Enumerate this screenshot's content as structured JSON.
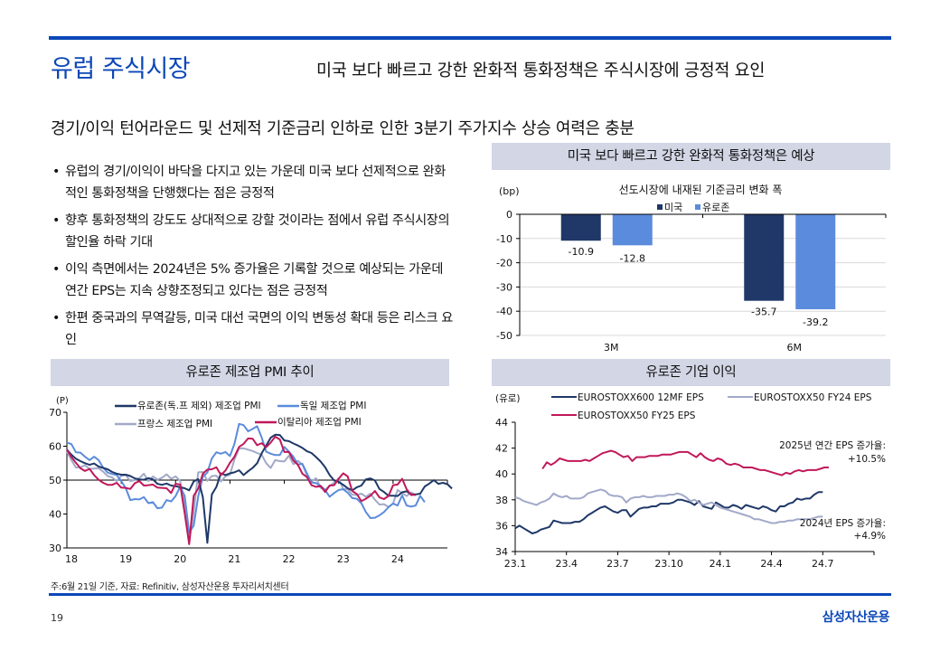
{
  "header": {
    "title": "유럽 주식시장",
    "headline": "미국 보다 빠르고 강한 완화적 통화정책은 주식시장에 긍정적 요인"
  },
  "subhead": "경기/이익 턴어라운드 및 선제적 기준금리 인하로 인한 3분기 주가지수 상승 여력은 충분",
  "bullets": [
    "유럽의 경기/이익이 바닥을 다지고 있는 가운데 미국 보다 선제적으로 완화적인 통화정책을 단행했다는 점은 긍정적",
    "향후 통화정책의 강도도 상대적으로 강할 것이라는 점에서 유럽 주식시장의 할인율 하락 기대",
    "이익 측면에서는 2024년은 5% 증가율은 기록할 것으로 예상되는 가운데 연간 EPS는 지속 상향조정되고 있다는 점은 긍정적",
    "한편 중국과의 무역갈등, 미국 대선 국면의 이익 변동성 확대 등은 리스크 요인"
  ],
  "panels": {
    "rates": "미국 보다 빠르고 강한 완화적 통화정책은 예상",
    "pmi": "유로존 제조업 PMI 추이",
    "eps": "유로존 기업 이익"
  },
  "footer": {
    "note": "주:6월 21일 기준, 자료: Refinitiv, 삼성자산운용 투자리서치센터",
    "page": "19",
    "brand": "삼성자산운용"
  },
  "colors": {
    "accent": "#0b47b8",
    "us": "#1f3868",
    "eurozone": "#5b8bdc",
    "eurozone_ex": "#1f3868",
    "germany": "#5b8bdc",
    "france": "#a2a9c8",
    "italy": "#c0185a"
  },
  "chart_data": [
    {
      "type": "bar",
      "title": "선도시장에 내재된 기준금리 변화 폭",
      "ylabel": "(bp)",
      "categories": [
        "3M",
        "6M"
      ],
      "series": [
        {
          "name": "미국",
          "values": [
            -10.9,
            -35.7
          ]
        },
        {
          "name": "유로존",
          "values": [
            -12.8,
            -39.2
          ]
        }
      ],
      "ylim": [
        -50,
        0
      ],
      "yticks": [
        0,
        -10,
        -20,
        -30,
        -40,
        -50
      ],
      "legend": "top-center",
      "grid": true
    },
    {
      "type": "line",
      "title": "유로존 제조업 PMI 추이",
      "ylabel": "(P)",
      "ylim": [
        30,
        70
      ],
      "yticks": [
        30,
        40,
        50,
        60,
        70
      ],
      "xticks": [
        "18",
        "19",
        "20",
        "21",
        "22",
        "23",
        "24"
      ],
      "x_start": 2018.0,
      "x_step": 0.0833333,
      "reference_line": 50,
      "legend": "top",
      "series": [
        {
          "name": "유로존(독.프 제외) 제조업 PMI",
          "values": [
            59.0,
            57.5,
            56.3,
            55.6,
            55.0,
            54.5,
            54.9,
            54.0,
            53.6,
            53.2,
            52.4,
            51.9,
            51.6,
            51.6,
            51.2,
            50.5,
            50.2,
            50.1,
            50.6,
            50.2,
            48.9,
            48.6,
            49.0,
            48.4,
            48.2,
            47.9,
            47.6,
            47.0,
            49.6,
            50.3,
            45.0,
            31.5,
            45.8,
            48.0,
            52.0,
            51.5,
            52.0,
            52.3,
            52.9,
            51.5,
            52.6,
            53.6,
            55.0,
            57.9,
            60.2,
            62.5,
            63.4,
            63.3,
            61.7,
            61.5,
            60.8,
            60.2,
            59.5,
            58.5,
            58.0,
            56.8,
            55.5,
            53.8,
            51.5,
            49.9,
            49.5,
            48.6,
            47.6,
            47.0,
            47.9,
            48.4,
            50.2,
            50.5,
            49.9,
            47.4,
            46.5,
            45.4,
            45.4,
            45.3,
            46.4,
            46.7,
            45.8,
            45.8,
            46.0,
            48.1,
            49.0,
            50.0,
            48.9,
            49.2,
            48.8,
            47.5
          ]
        },
        {
          "name": "독일 제조업 PMI",
          "values": [
            61.1,
            60.6,
            58.2,
            58.1,
            56.9,
            55.9,
            56.9,
            55.9,
            53.7,
            52.2,
            51.8,
            51.5,
            49.7,
            47.6,
            44.1,
            44.4,
            44.3,
            45.0,
            43.2,
            43.5,
            41.7,
            41.9,
            44.1,
            43.7,
            45.3,
            48.0,
            45.4,
            34.5,
            36.6,
            45.2,
            51.0,
            52.2,
            56.4,
            58.2,
            57.8,
            58.3,
            57.1,
            60.7,
            66.6,
            66.2,
            64.4,
            65.1,
            65.9,
            62.6,
            58.4,
            57.8,
            57.4,
            57.4,
            59.8,
            58.4,
            56.9,
            54.6,
            54.8,
            52.0,
            49.3,
            49.1,
            48.3,
            47.1,
            45.1,
            46.2,
            47.1,
            47.3,
            46.3,
            44.7,
            44.5,
            43.2,
            40.6,
            38.8,
            38.9,
            39.6,
            40.6,
            42.0,
            43.1,
            42.5,
            45.5,
            42.5,
            42.2,
            42.5,
            45.4,
            43.5
          ]
        },
        {
          "name": "프랑스 제조업 PMI",
          "values": [
            58.4,
            55.9,
            53.7,
            53.8,
            54.4,
            53.3,
            53.4,
            53.5,
            52.5,
            51.2,
            50.8,
            49.7,
            51.2,
            51.5,
            49.7,
            50.0,
            50.6,
            51.9,
            49.7,
            51.1,
            50.1,
            50.7,
            51.7,
            50.4,
            51.1,
            49.8,
            43.2,
            31.5,
            40.6,
            52.3,
            52.4,
            49.8,
            51.2,
            51.3,
            49.6,
            51.1,
            51.6,
            56.1,
            59.3,
            59.4,
            59.0,
            58.6,
            58.0,
            57.5,
            55.0,
            53.6,
            55.9,
            55.6,
            55.5,
            57.2,
            54.7,
            55.7,
            54.6,
            51.4,
            49.5,
            50.6,
            47.7,
            47.2,
            48.3,
            49.2,
            50.5,
            47.4,
            47.3,
            45.7,
            45.6,
            46.0,
            45.1,
            46.0,
            44.2,
            42.8,
            42.9,
            42.1,
            43.1,
            47.1,
            46.2,
            45.3,
            46.4,
            45.4
          ]
        },
        {
          "name": "이탈리아 제조업 PMI",
          "values": [
            59.0,
            56.8,
            55.1,
            53.5,
            52.7,
            53.3,
            51.5,
            50.1,
            49.2,
            48.6,
            48.6,
            49.2,
            47.8,
            47.7,
            47.4,
            49.1,
            49.7,
            48.4,
            48.5,
            48.7,
            47.8,
            47.7,
            47.6,
            46.2,
            48.9,
            48.7,
            40.3,
            31.1,
            45.4,
            47.5,
            51.9,
            53.1,
            53.2,
            53.8,
            51.5,
            52.8,
            55.1,
            56.9,
            59.8,
            60.7,
            62.3,
            62.2,
            60.3,
            60.9,
            59.7,
            61.1,
            62.8,
            62.0,
            58.3,
            58.3,
            55.8,
            54.5,
            51.9,
            50.9,
            48.5,
            48.0,
            48.3,
            46.5,
            48.4,
            48.5,
            50.4,
            52.0,
            51.1,
            46.8,
            45.9,
            43.8,
            44.5,
            45.4,
            46.8,
            44.9,
            44.4,
            45.3,
            48.5,
            48.7,
            50.4,
            47.3,
            45.6,
            45.7
          ]
        }
      ]
    },
    {
      "type": "line",
      "title": "유로존 기업 이익",
      "ylabel": "(유로)",
      "ylim": [
        34,
        44
      ],
      "yticks": [
        34,
        36,
        38,
        40,
        42,
        44
      ],
      "xticks": [
        "23.1",
        "23.4",
        "23.7",
        "23.10",
        "24.1",
        "24.4",
        "24.7"
      ],
      "x_range_months": [
        0,
        21
      ],
      "legend": "top",
      "annotations": [
        {
          "text": "2025년 연간 EPS 증가율:",
          "value": "+10.5%"
        },
        {
          "text": "2024년 EPS 증가율:",
          "value": "+4.9%"
        }
      ],
      "series": [
        {
          "name": "EUROSTOXX600 12MF EPS",
          "start_month": 0,
          "step_months": 0.25,
          "values": [
            35.8,
            36.0,
            35.8,
            35.6,
            35.4,
            35.5,
            35.7,
            35.8,
            35.9,
            36.4,
            36.3,
            36.2,
            36.2,
            36.2,
            36.3,
            36.3,
            36.5,
            36.8,
            37.0,
            37.2,
            37.4,
            37.5,
            37.3,
            37.1,
            37.0,
            37.2,
            37.2,
            36.7,
            37.0,
            37.3,
            37.4,
            37.4,
            37.5,
            37.5,
            37.7,
            37.7,
            37.7,
            37.8,
            38.0,
            38.0,
            37.9,
            37.8,
            37.6,
            37.9,
            37.5,
            37.4,
            37.3,
            37.8,
            37.6,
            37.4,
            37.4,
            37.6,
            37.5,
            37.3,
            37.6,
            37.5,
            37.4,
            37.3,
            37.5,
            37.4,
            37.2,
            37.1,
            37.5,
            37.5,
            37.7,
            37.8,
            38.1,
            38.0,
            38.1,
            38.1,
            38.4,
            38.6,
            38.6
          ]
        },
        {
          "name": "EUROSTOXX50 FY24 EPS",
          "start_month": 0,
          "step_months": 0.25,
          "values": [
            38.2,
            38.1,
            37.9,
            37.8,
            37.7,
            37.6,
            37.8,
            37.9,
            38.1,
            38.5,
            38.3,
            38.2,
            38.3,
            38.1,
            38.1,
            38.1,
            38.2,
            38.5,
            38.6,
            38.7,
            38.8,
            38.7,
            38.4,
            38.3,
            38.3,
            38.2,
            37.8,
            38.1,
            38.2,
            38.2,
            38.3,
            38.2,
            38.2,
            38.3,
            38.3,
            38.3,
            38.4,
            38.4,
            38.5,
            38.4,
            38.2,
            37.9,
            38.0,
            37.8,
            37.6,
            37.7,
            37.8,
            37.6,
            37.4,
            37.3,
            37.2,
            37.1,
            37.0,
            36.9,
            36.8,
            36.7,
            36.5,
            36.5,
            36.4,
            36.3,
            36.2,
            36.2,
            36.3,
            36.3,
            36.4,
            36.4,
            36.5,
            36.5,
            36.5,
            36.5,
            36.6,
            36.7,
            36.7
          ]
        },
        {
          "name": "EUROSTOXX50 FY25 EPS",
          "start_month": 1.6,
          "step_months": 0.25,
          "values": [
            40.4,
            40.9,
            40.7,
            40.9,
            41.2,
            41.1,
            41.0,
            41.0,
            41.0,
            41.0,
            41.1,
            41.0,
            41.2,
            41.4,
            41.6,
            41.7,
            41.8,
            41.7,
            41.5,
            41.3,
            41.4,
            41.0,
            41.3,
            41.3,
            41.3,
            41.4,
            41.4,
            41.4,
            41.5,
            41.5,
            41.5,
            41.6,
            41.7,
            41.7,
            41.7,
            41.5,
            41.3,
            41.6,
            41.3,
            41.1,
            41.0,
            41.2,
            41.1,
            40.8,
            40.7,
            40.8,
            40.7,
            40.5,
            40.5,
            40.5,
            40.4,
            40.3,
            40.3,
            40.2,
            40.1,
            40.0,
            39.9,
            40.1,
            40.0,
            40.2,
            40.3,
            40.2,
            40.3,
            40.3,
            40.3,
            40.4,
            40.5,
            40.5
          ]
        }
      ]
    }
  ]
}
